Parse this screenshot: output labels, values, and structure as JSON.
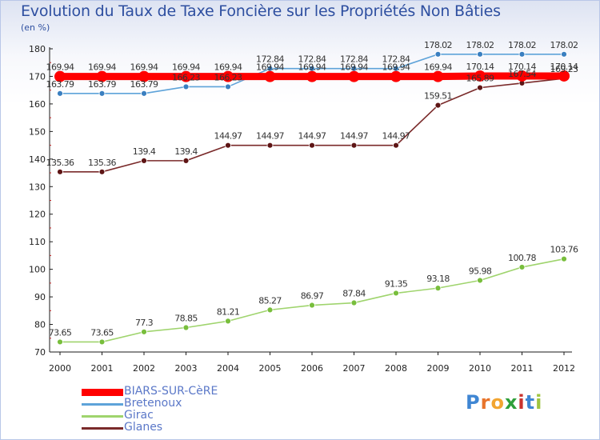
{
  "title": "Evolution du Taux de Taxe Foncière sur les Propriétés Non Bâties",
  "subtitle": "(en %)",
  "logo": {
    "text": "Proxiti",
    "letters": [
      {
        "ch": "P",
        "color": "#3f86d3"
      },
      {
        "ch": "r",
        "color": "#e8742b"
      },
      {
        "ch": "o",
        "color": "#f2a531"
      },
      {
        "ch": "x",
        "color": "#2f9f3a"
      },
      {
        "ch": "i",
        "color": "#c9332e"
      },
      {
        "ch": "t",
        "color": "#3f86d3"
      },
      {
        "ch": "i",
        "color": "#9fc540"
      }
    ]
  },
  "chart_data": {
    "type": "line",
    "title": "Evolution du Taux de Taxe Foncière sur les Propriétés Non Bâties",
    "ylabel": "(en %)",
    "xlabel": "",
    "x": [
      "2000",
      "2001",
      "2002",
      "2003",
      "2004",
      "2005",
      "2006",
      "2007",
      "2008",
      "2009",
      "2010",
      "2011",
      "2012"
    ],
    "ylim": [
      70,
      180
    ],
    "yticks": [
      70,
      80,
      90,
      100,
      110,
      120,
      130,
      140,
      150,
      160,
      170,
      180
    ],
    "grid": false,
    "legend_position": "bottom-left",
    "series": [
      {
        "name": "BIARS-SUR-CèRE",
        "color": "#ff0000",
        "highlight": true,
        "values": [
          169.94,
          169.94,
          169.94,
          169.94,
          169.94,
          169.94,
          169.94,
          169.94,
          169.94,
          169.94,
          170.14,
          170.14,
          170.14
        ],
        "labels": [
          "169.94",
          "169.94",
          "169.94",
          "169.94",
          "169.94",
          "169.94",
          "169.94",
          "169.94",
          "169.94",
          "169.94",
          "170.14",
          "170.14",
          "170.14"
        ]
      },
      {
        "name": "Bretenoux",
        "color": "#5ea3d9",
        "marker": "#3a7fc0",
        "values": [
          163.79,
          163.79,
          163.79,
          166.23,
          166.23,
          172.84,
          172.84,
          172.84,
          172.84,
          178.02,
          178.02,
          178.02,
          178.02
        ],
        "labels": [
          "163.79",
          "163.79",
          "163.79",
          "166.23",
          "166.23",
          "172.84",
          "172.84",
          "172.84",
          "172.84",
          "178.02",
          "178.02",
          "178.02",
          "178.02"
        ]
      },
      {
        "name": "Girac",
        "color": "#9fd46d",
        "marker": "#78be3c",
        "values": [
          73.65,
          73.65,
          77.3,
          78.85,
          81.21,
          85.27,
          86.97,
          87.84,
          91.35,
          93.18,
          95.98,
          100.78,
          103.76
        ],
        "labels": [
          "73.65",
          "73.65",
          "77.3",
          "78.85",
          "81.21",
          "85.27",
          "86.97",
          "87.84",
          "91.35",
          "93.18",
          "95.98",
          "100.78",
          "103.76"
        ]
      },
      {
        "name": "Glanes",
        "color": "#7a2a2a",
        "marker": "#5e1515",
        "values": [
          135.36,
          135.36,
          139.4,
          139.4,
          144.97,
          144.97,
          144.97,
          144.97,
          144.97,
          159.51,
          165.89,
          167.54,
          169.23
        ],
        "labels": [
          "135.36",
          "135.36",
          "139.4",
          "139.4",
          "144.97",
          "144.97",
          "144.97",
          "144.97",
          "144.97",
          "159.51",
          "165.89",
          "167.54",
          "169.23"
        ]
      }
    ]
  }
}
